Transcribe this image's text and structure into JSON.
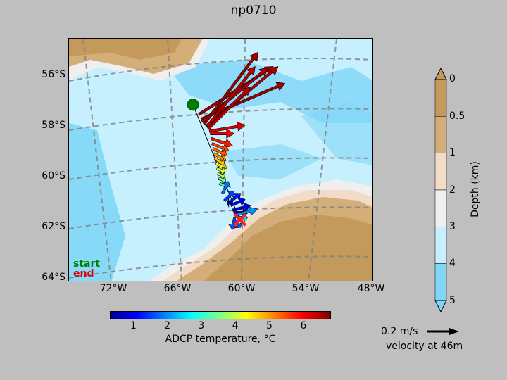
{
  "title": "np0710",
  "legend": {
    "start": "start",
    "end": "end"
  },
  "latitude_labels": [
    "56°S",
    "58°S",
    "60°S",
    "62°S",
    "64°S"
  ],
  "longitude_labels": [
    "72°W",
    "66°W",
    "60°W",
    "54°W",
    "48°W"
  ],
  "temperature_colorbar": {
    "label": "ADCP temperature, °C",
    "ticks": [
      "1",
      "2",
      "3",
      "4",
      "5",
      "6"
    ],
    "range": [
      0.3,
      6.8
    ],
    "colormap": "jet"
  },
  "depth_colorbar": {
    "label": "Depth (km)",
    "ticks": [
      "0",
      "0.5",
      "1",
      "2",
      "3",
      "4",
      "5"
    ],
    "colors": [
      "#c49a5c",
      "#d4ae78",
      "#f2dcc8",
      "#efefef",
      "#c6f0fd",
      "#80d6f7"
    ]
  },
  "quiver_key": {
    "speed": "0.2 m/s",
    "caption": "velocity at 46m"
  },
  "colors": {
    "land": "#c49a5c",
    "shelf": "#d4ae78",
    "track_start_marker": "#008000",
    "track_end_marker": "#ff2020"
  },
  "chart_data": {
    "type": "quiver-map",
    "start": {
      "lon": -64.8,
      "lat": -57.0
    },
    "end": {
      "lon": -60.1,
      "lat": -61.7
    },
    "vectors": [
      {
        "lon": -64.2,
        "lat": -57.4,
        "u": 0.62,
        "v": 0.4,
        "t": 6.6
      },
      {
        "lon": -64.0,
        "lat": -57.6,
        "u": 0.7,
        "v": 0.3,
        "t": 6.6
      },
      {
        "lon": -63.9,
        "lat": -57.7,
        "u": 0.55,
        "v": 0.45,
        "t": 6.5
      },
      {
        "lon": -63.7,
        "lat": -57.8,
        "u": 0.45,
        "v": 0.6,
        "t": 6.6
      },
      {
        "lon": -63.5,
        "lat": -57.9,
        "u": 0.6,
        "v": 0.5,
        "t": 6.5
      },
      {
        "lon": -63.4,
        "lat": -57.9,
        "u": 0.4,
        "v": 0.5,
        "t": 6.4
      },
      {
        "lon": -63.3,
        "lat": -58.0,
        "u": 0.35,
        "v": 0.35,
        "t": 6.4
      },
      {
        "lon": -63.2,
        "lat": -58.1,
        "u": 0.3,
        "v": 0.05,
        "t": 6.2
      },
      {
        "lon": -63.1,
        "lat": -58.2,
        "u": 0.2,
        "v": 0.0,
        "t": 6.0
      },
      {
        "lon": -63.0,
        "lat": -58.4,
        "u": 0.18,
        "v": -0.06,
        "t": 5.8
      },
      {
        "lon": -62.9,
        "lat": -58.6,
        "u": 0.14,
        "v": -0.06,
        "t": 5.5
      },
      {
        "lon": -62.8,
        "lat": -58.8,
        "u": 0.12,
        "v": -0.06,
        "t": 5.3
      },
      {
        "lon": -62.7,
        "lat": -59.0,
        "u": 0.1,
        "v": -0.06,
        "t": 5.0
      },
      {
        "lon": -62.6,
        "lat": -59.2,
        "u": 0.08,
        "v": -0.05,
        "t": 4.7
      },
      {
        "lon": -62.5,
        "lat": -59.4,
        "u": 0.09,
        "v": -0.04,
        "t": 4.4
      },
      {
        "lon": -62.4,
        "lat": -59.6,
        "u": 0.07,
        "v": -0.03,
        "t": 4.1
      },
      {
        "lon": -62.3,
        "lat": -59.8,
        "u": 0.06,
        "v": -0.03,
        "t": 3.8
      },
      {
        "lon": -62.2,
        "lat": -60.0,
        "u": 0.06,
        "v": -0.02,
        "t": 3.5
      },
      {
        "lon": -62.1,
        "lat": -60.2,
        "u": 0.07,
        "v": -0.03,
        "t": 3.1
      },
      {
        "lon": -61.8,
        "lat": -60.6,
        "u": 0.05,
        "v": 0.1,
        "t": 1.8
      },
      {
        "lon": -61.6,
        "lat": -60.9,
        "u": 0.08,
        "v": 0.08,
        "t": 1.5
      },
      {
        "lon": -61.2,
        "lat": -61.0,
        "u": 0.1,
        "v": 0.08,
        "t": 1.2
      },
      {
        "lon": -61.0,
        "lat": -61.1,
        "u": 0.12,
        "v": 0.05,
        "t": 1.0
      },
      {
        "lon": -60.8,
        "lat": -61.3,
        "u": 0.15,
        "v": 0.04,
        "t": 0.9
      },
      {
        "lon": -60.7,
        "lat": -61.4,
        "u": 0.12,
        "v": 0.0,
        "t": 0.8
      },
      {
        "lon": -60.5,
        "lat": -61.5,
        "u": 0.18,
        "v": 0.05,
        "t": 2.0
      },
      {
        "lon": -60.4,
        "lat": -61.6,
        "u": 0.09,
        "v": 0.0,
        "t": 2.5
      },
      {
        "lon": -60.9,
        "lat": -61.0,
        "u": -0.04,
        "v": 0.0,
        "t": 0.5
      },
      {
        "lon": -60.6,
        "lat": -61.6,
        "u": -0.02,
        "v": -0.1,
        "t": 1.6
      },
      {
        "lon": -60.6,
        "lat": -61.7,
        "u": 0.05,
        "v": -0.06,
        "t": 1.6
      }
    ]
  }
}
